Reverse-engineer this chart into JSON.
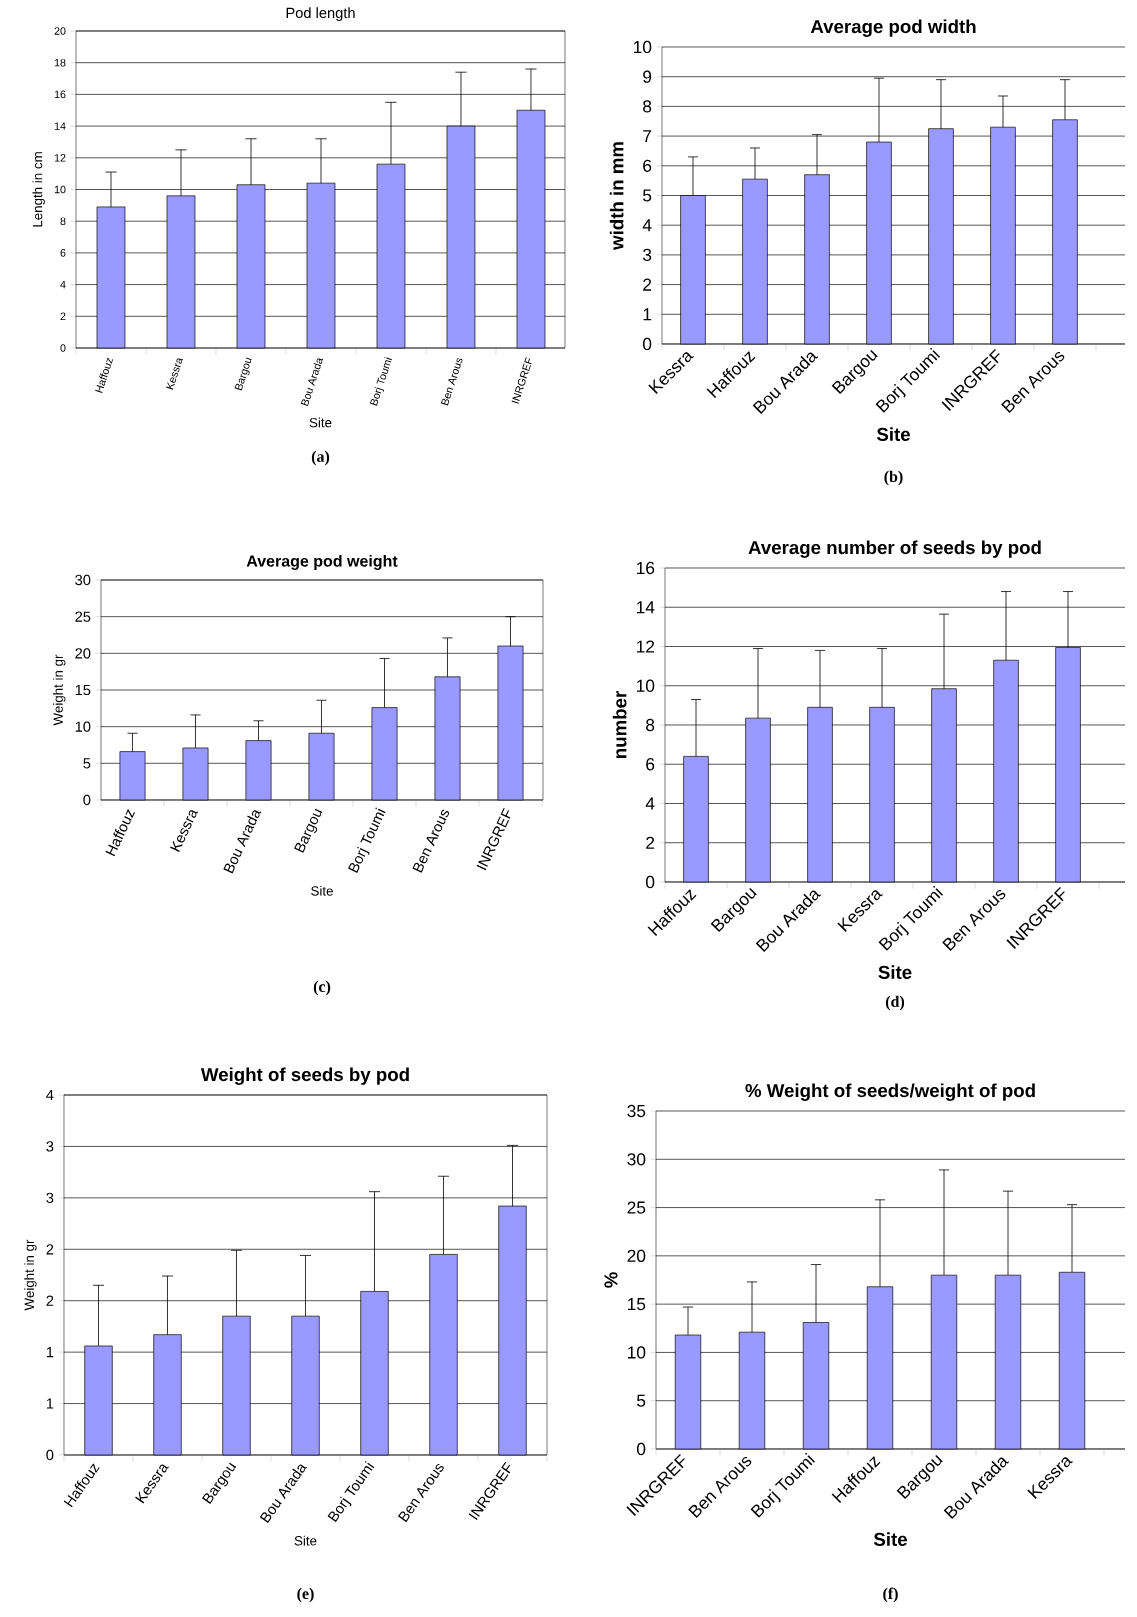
{
  "chart_data": [
    {
      "type": "bar",
      "title": "Pod length",
      "xlabel": "Site",
      "ylabel": "Length in cm",
      "categories": [
        "Haffouz",
        "Kessra",
        "Bargou",
        "Bou Arada",
        "Borj Toumi",
        "Ben Arous",
        "INRGREF"
      ],
      "values": [
        8.9,
        9.6,
        10.3,
        10.4,
        11.6,
        14.0,
        15.0
      ],
      "errors": [
        [
          8.9,
          11.1
        ],
        [
          9.6,
          12.5
        ],
        [
          10.3,
          13.2
        ],
        [
          10.4,
          13.2
        ],
        [
          11.6,
          15.5
        ],
        [
          14.0,
          17.4
        ],
        [
          15.0,
          17.6
        ]
      ],
      "color": "#9999ff",
      "ylim": [
        0,
        20
      ],
      "yticks": [
        0,
        2,
        4,
        6,
        8,
        10,
        12,
        14,
        16,
        18,
        20
      ],
      "grid": "y",
      "annotations": [
        "(a)"
      ]
    },
    {
      "type": "bar",
      "title": "Average pod width",
      "xlabel": "Site",
      "ylabel": "width in mm",
      "categories": [
        "Kessra",
        "Haffouz",
        "Bou Arada",
        "Bargou",
        "Borj Toumi",
        "INRGREF",
        "Ben Arous"
      ],
      "values": [
        5.0,
        5.55,
        5.7,
        6.8,
        7.25,
        7.3,
        7.55
      ],
      "errors": [
        [
          5.0,
          6.3
        ],
        [
          5.55,
          6.6
        ],
        [
          5.7,
          7.05
        ],
        [
          6.8,
          8.95
        ],
        [
          7.25,
          8.9
        ],
        [
          7.3,
          8.35
        ],
        [
          7.55,
          8.9
        ]
      ],
      "color": "#9999ff",
      "ylim": [
        0,
        10
      ],
      "yticks": [
        0,
        1,
        2,
        3,
        4,
        5,
        6,
        7,
        8,
        9,
        10
      ],
      "grid": "y",
      "annotations": [
        "(b)"
      ]
    },
    {
      "type": "bar",
      "title": "Average pod weight",
      "xlabel": "Site",
      "ylabel": "Weight in gr",
      "categories": [
        "Haffouz",
        "Kessra",
        "Bou Arada",
        "Bargou",
        "Borj Toumi",
        "Ben Arous",
        "INRGREF"
      ],
      "values": [
        6.6,
        7.1,
        8.1,
        9.1,
        12.6,
        16.8,
        21.0
      ],
      "errors": [
        [
          6.6,
          9.1
        ],
        [
          7.1,
          11.6
        ],
        [
          8.1,
          10.8
        ],
        [
          9.1,
          13.6
        ],
        [
          12.6,
          19.3
        ],
        [
          16.8,
          22.1
        ],
        [
          21.0,
          25.0
        ]
      ],
      "color": "#9999ff",
      "ylim": [
        0,
        30
      ],
      "yticks": [
        0,
        5,
        10,
        15,
        20,
        25,
        30
      ],
      "grid": "y",
      "annotations": [
        "(c)"
      ]
    },
    {
      "type": "bar",
      "title": "Average number of seeds by pod",
      "xlabel": "Site",
      "ylabel": "number",
      "categories": [
        "Haffouz",
        "Bargou",
        "Bou Arada",
        "Kessra",
        "Borj Toumi",
        "Ben Arous",
        "INRGREF"
      ],
      "values": [
        6.4,
        8.35,
        8.9,
        8.9,
        9.85,
        11.3,
        11.95
      ],
      "errors": [
        [
          6.4,
          9.3
        ],
        [
          8.35,
          11.9
        ],
        [
          8.9,
          11.8
        ],
        [
          8.9,
          11.9
        ],
        [
          9.85,
          13.65
        ],
        [
          11.3,
          14.8
        ],
        [
          11.95,
          14.8
        ]
      ],
      "color": "#9999ff",
      "ylim": [
        0,
        16
      ],
      "yticks": [
        0,
        2,
        4,
        6,
        8,
        10,
        12,
        14,
        16
      ],
      "grid": "y",
      "annotations": [
        "(d)"
      ]
    },
    {
      "type": "bar",
      "title": "Weight of seeds by pod",
      "xlabel": "Site",
      "ylabel": "Weight in gr",
      "categories": [
        "Haffouz",
        "Kessra",
        "Bargou",
        "Bou Arada",
        "Borj Toumi",
        "Ben Arous",
        "INRGREF"
      ],
      "values": [
        1.06,
        1.17,
        1.35,
        1.35,
        1.59,
        1.95,
        2.42
      ],
      "errors": [
        [
          1.06,
          1.65
        ],
        [
          1.17,
          1.74
        ],
        [
          1.35,
          1.99
        ],
        [
          1.35,
          1.94
        ],
        [
          1.59,
          2.56
        ],
        [
          1.95,
          2.71
        ],
        [
          2.42,
          3.01
        ]
      ],
      "color": "#9999ff",
      "ylim": [
        0,
        3.5
      ],
      "yticks": [
        0,
        {
          "value": 0.5,
          "label": "1"
        },
        1,
        {
          "value": 1.5,
          "label": "2"
        },
        2,
        {
          "value": 2.5,
          "label": "3"
        },
        3,
        {
          "value": 3.5,
          "label": "4"
        }
      ],
      "grid": "y",
      "annotations": [
        "(e)"
      ]
    },
    {
      "type": "bar",
      "title": "% Weight of seeds/weight of pod",
      "xlabel": "Site",
      "ylabel": "%",
      "categories": [
        "INRGREF",
        "Ben Arous",
        "Borj Toumi",
        "Haffouz",
        "Bargou",
        "Bou Arada",
        "Kessra"
      ],
      "values": [
        11.8,
        12.1,
        13.1,
        16.8,
        18.0,
        18.0,
        18.3
      ],
      "errors": [
        [
          11.8,
          14.7
        ],
        [
          12.1,
          17.3
        ],
        [
          13.1,
          19.1
        ],
        [
          16.8,
          25.8
        ],
        [
          18.0,
          28.9
        ],
        [
          18.0,
          26.7
        ],
        [
          18.3,
          25.3
        ]
      ],
      "color": "#9999ff",
      "ylim": [
        0,
        35
      ],
      "yticks": [
        0,
        5,
        10,
        15,
        20,
        25,
        30,
        35
      ],
      "grid": "y",
      "annotations": [
        "(f)"
      ]
    }
  ]
}
